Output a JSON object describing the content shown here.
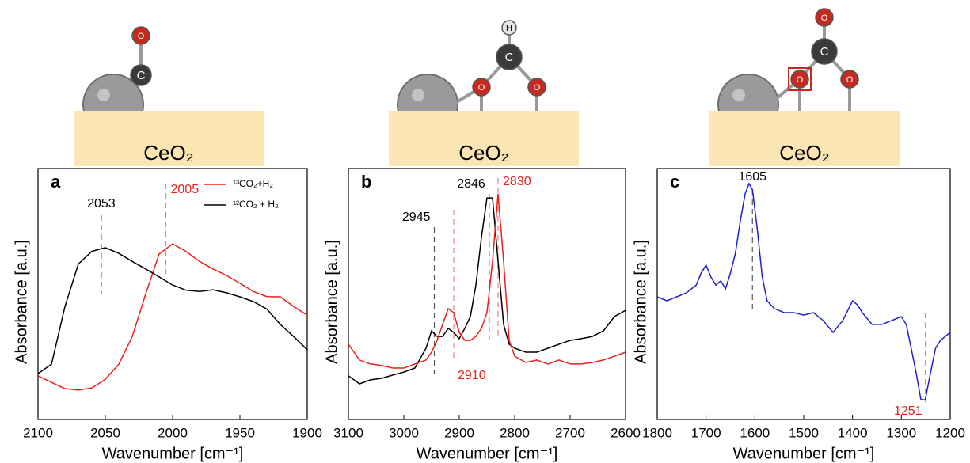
{
  "chart_data": [
    {
      "type": "line",
      "panel_label": "a",
      "substrate": "CeO₂",
      "atoms": [
        "O",
        "C"
      ],
      "xlabel": "Wavenumber [cm⁻¹]",
      "ylabel": "Absorbance [a.u.]",
      "x": [
        2100,
        2090,
        2080,
        2070,
        2060,
        2050,
        2040,
        2030,
        2020,
        2010,
        2000,
        1990,
        1980,
        1970,
        1960,
        1950,
        1940,
        1930,
        1920,
        1910,
        1900
      ],
      "series": [
        {
          "name": "¹³CO₂+H₂",
          "color": "#e8201c",
          "values": [
            17.4,
            14.8,
            12.3,
            11.7,
            12.6,
            16,
            22,
            33,
            50,
            66,
            70,
            67,
            63,
            60,
            57.4,
            54.3,
            51,
            49,
            48.9,
            45,
            41.6
          ]
        },
        {
          "name": "¹²CO₂ + H₂",
          "color": "#000000",
          "values": [
            18.3,
            22,
            45,
            62,
            67,
            68.5,
            66.2,
            63,
            60,
            56.8,
            53.6,
            51.5,
            51,
            51.7,
            50.5,
            48.9,
            47,
            44,
            37.9,
            33,
            27.8
          ]
        }
      ],
      "peaks": [
        {
          "x": 2053,
          "color": "#000000"
        },
        {
          "x": 2005,
          "color": "#e8201c"
        }
      ],
      "legend": "upper right",
      "xlim": [
        2100,
        1900
      ],
      "xticks": [
        2100,
        2050,
        2000,
        1950,
        1900
      ],
      "ylim": [
        0,
        100
      ]
    },
    {
      "type": "line",
      "panel_label": "b",
      "substrate": "CeO₂",
      "atoms": [
        "H",
        "C",
        "O",
        "O"
      ],
      "xlabel": "Wavenumber [cm⁻¹]",
      "ylabel": "Absorbance [a.u.]",
      "x": [
        3100,
        3080,
        3060,
        3040,
        3020,
        3000,
        2980,
        2960,
        2950,
        2940,
        2930,
        2920,
        2910,
        2900,
        2890,
        2880,
        2870,
        2860,
        2850,
        2840,
        2830,
        2820,
        2810,
        2800,
        2780,
        2760,
        2740,
        2720,
        2700,
        2680,
        2660,
        2640,
        2620,
        2600
      ],
      "series": [
        {
          "color": "#000000",
          "values": [
            17.4,
            14.2,
            15.8,
            16.4,
            17.7,
            18.9,
            20.5,
            28.4,
            35.3,
            33.1,
            33.1,
            36.3,
            34.7,
            32.2,
            36.3,
            41,
            53.6,
            72.6,
            88.3,
            88.3,
            63.1,
            37.9,
            30,
            28.4,
            26.8,
            26.8,
            28.4,
            30,
            31.5,
            32.2,
            33.1,
            35.3,
            41,
            43.5
          ]
        },
        {
          "color": "#e8201c",
          "values": [
            30,
            23.7,
            22.1,
            21.5,
            20.5,
            20.5,
            22.1,
            23.7,
            26.8,
            31.5,
            37.9,
            44.2,
            42.6,
            34.7,
            31.5,
            31.5,
            33.1,
            36.3,
            42.6,
            63.1,
            89.9,
            63.1,
            31.5,
            25.2,
            22.7,
            23.7,
            22.1,
            23.7,
            22.1,
            22.1,
            22.7,
            23.7,
            25.2,
            26.8
          ]
        }
      ],
      "peaks": [
        {
          "x": 2945,
          "color": "#000000"
        },
        {
          "x": 2910,
          "color": "#e8201c"
        },
        {
          "x": 2846,
          "color": "#000000"
        },
        {
          "x": 2830,
          "color": "#e8201c"
        }
      ],
      "xlim": [
        3100,
        2600
      ],
      "xticks": [
        3100,
        3000,
        2900,
        2800,
        2700,
        2600
      ],
      "ylim": [
        0,
        100
      ]
    },
    {
      "type": "line",
      "panel_label": "c",
      "substrate": "CeO₂",
      "atoms": [
        "O",
        "C",
        "O",
        "O"
      ],
      "xlabel": "Wavenumber [cm⁻¹]",
      "ylabel": "Absorbance [a.u.]",
      "x": [
        1800,
        1780,
        1760,
        1740,
        1720,
        1710,
        1700,
        1690,
        1680,
        1670,
        1660,
        1650,
        1640,
        1630,
        1620,
        1612,
        1605,
        1595,
        1585,
        1575,
        1560,
        1540,
        1520,
        1500,
        1480,
        1460,
        1440,
        1420,
        1400,
        1390,
        1380,
        1360,
        1340,
        1320,
        1300,
        1290,
        1280,
        1270,
        1260,
        1251,
        1240,
        1230,
        1220,
        1210,
        1200
      ],
      "series": [
        {
          "color": "#1f1fd6",
          "values": [
            48.9,
            47.3,
            48.9,
            50.5,
            53.6,
            58.4,
            61.5,
            56.8,
            53.6,
            55.2,
            52.1,
            58.4,
            66.2,
            78.9,
            89.9,
            94,
            91.5,
            75.7,
            56.8,
            47.3,
            44.2,
            42.6,
            42.6,
            41.6,
            42.6,
            39.4,
            34.7,
            39.4,
            47.3,
            45.7,
            42.6,
            37.9,
            37.9,
            39.4,
            41,
            37.9,
            28.4,
            18.9,
            7.9,
            7.9,
            18.9,
            28.4,
            31.5,
            33.1,
            34.7
          ]
        }
      ],
      "peaks": [
        {
          "x": 1605,
          "color": "#000000"
        },
        {
          "x": 1251,
          "color": "#e8201c"
        }
      ],
      "xlim": [
        1800,
        1200
      ],
      "xticks": [
        1800,
        1700,
        1600,
        1500,
        1400,
        1300,
        1200
      ],
      "ylim": [
        0,
        100
      ]
    }
  ]
}
